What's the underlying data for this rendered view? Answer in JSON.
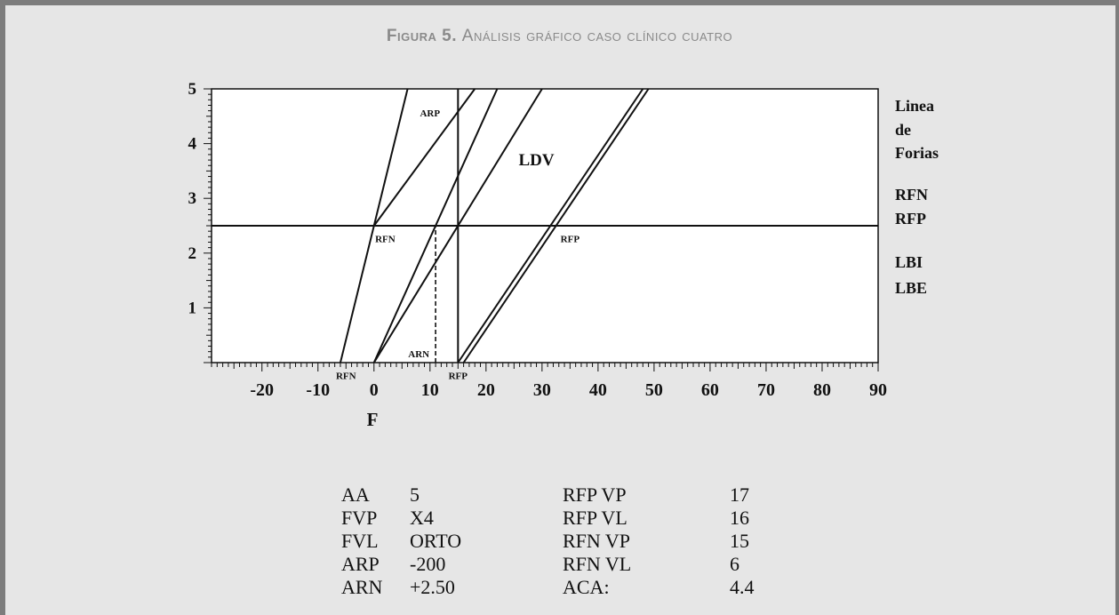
{
  "figure": {
    "title_prefix": "Figura 5.",
    "title_text": "Análisis gráfico caso clínico cuatro"
  },
  "chart_data": {
    "type": "line",
    "xlabel": "F",
    "ylabel": "",
    "xlim": [
      -29,
      90
    ],
    "ylim": [
      0,
      5
    ],
    "x_ticks": [
      -20,
      -10,
      0,
      10,
      20,
      30,
      40,
      50,
      60,
      70,
      80,
      90
    ],
    "x_tick_labels": [
      "-20",
      "-10",
      "0",
      "10",
      "20",
      "30",
      "40",
      "50",
      "60",
      "70",
      "80",
      "90"
    ],
    "y_ticks": [
      1,
      2,
      3,
      4,
      5
    ],
    "y_tick_labels": [
      "1",
      "2",
      "3",
      "4",
      "5"
    ],
    "series": [
      {
        "x": [
          -6,
          6
        ],
        "y": [
          0,
          5
        ],
        "style": "solid"
      },
      {
        "x": [
          0,
          18
        ],
        "y": [
          2.5,
          5
        ],
        "style": "solid"
      },
      {
        "x": [
          0,
          22
        ],
        "y": [
          0,
          5
        ],
        "style": "solid"
      },
      {
        "x": [
          0,
          30
        ],
        "y": [
          0,
          5
        ],
        "style": "solid"
      },
      {
        "x": [
          15,
          15
        ],
        "y": [
          0,
          5
        ],
        "style": "solid"
      },
      {
        "x": [
          15,
          48
        ],
        "y": [
          0,
          5
        ],
        "style": "solid"
      },
      {
        "x": [
          16,
          49
        ],
        "y": [
          0,
          5
        ],
        "style": "solid"
      },
      {
        "x": [
          -29,
          90
        ],
        "y": [
          2.5,
          2.5
        ],
        "style": "solid"
      },
      {
        "x": [
          11,
          11
        ],
        "y": [
          0,
          2.5
        ],
        "style": "dashed"
      }
    ],
    "annotations": [
      {
        "text": "ARP",
        "x": 10,
        "y": 4.5
      },
      {
        "text": "LDV",
        "x": 29,
        "y": 3.6
      },
      {
        "text": "RFN",
        "x": 2,
        "y": 2.2
      },
      {
        "text": "RFP",
        "x": 35,
        "y": 2.2
      },
      {
        "text": "ARN",
        "x": 8,
        "y": 0.1
      },
      {
        "text": "RFN",
        "x": -5,
        "y": -0.3
      },
      {
        "text": "RFP",
        "x": 15,
        "y": -0.3
      }
    ],
    "right_labels": [
      "Linea",
      "de",
      "Forias",
      "RFN",
      "RFP",
      "LBI",
      "LBE"
    ]
  },
  "table": {
    "rows": [
      {
        "k1": "AA",
        "v1": "5",
        "k2": "RFP VP",
        "v2": "17"
      },
      {
        "k1": "FVP",
        "v1": "X4",
        "k2": "RFP VL",
        "v2": "16"
      },
      {
        "k1": "FVL",
        "v1": "ORTO",
        "k2": "RFN VP",
        "v2": "15"
      },
      {
        "k1": "ARP",
        "v1": "-200",
        "k2": "RFN VL",
        "v2": "6"
      },
      {
        "k1": "ARN",
        "v1": "+2.50",
        "k2": "ACA:",
        "v2": "4.4"
      }
    ]
  }
}
